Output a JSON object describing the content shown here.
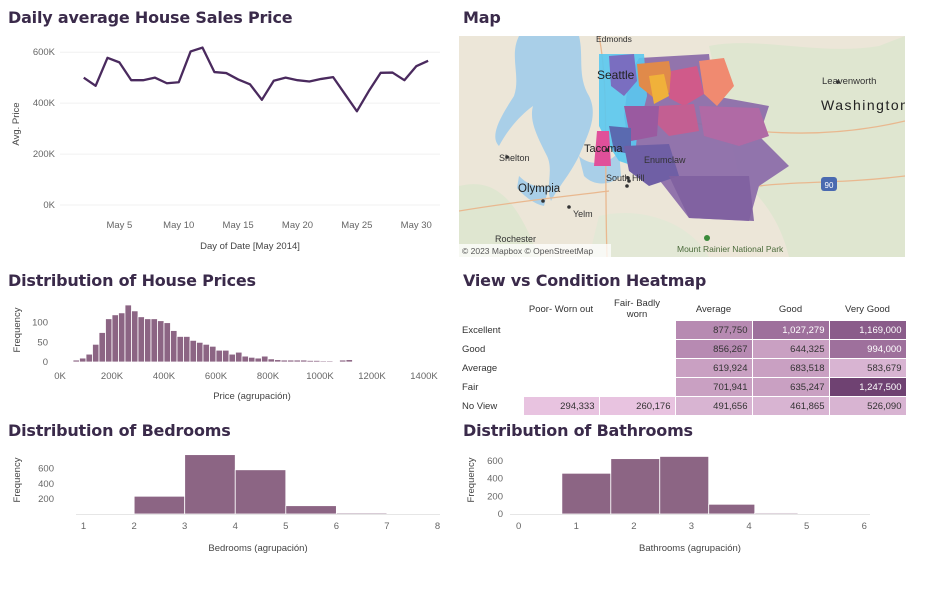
{
  "titles": {
    "daily": "Daily average House Sales Price",
    "map": "Map",
    "dist_prices": "Distribution of House Prices",
    "heatmap": "View vs Condition Heatmap",
    "bedrooms": "Distribution of Bedrooms",
    "bathrooms": "Distribution of Bathrooms"
  },
  "colors": {
    "line": "#4a2a5e",
    "bar": "#8c6584",
    "bar_edge": "#ffffff",
    "title": "#3a2a4a"
  },
  "map": {
    "labels": {
      "edmonds": "Edmonds",
      "seattle": "Seattle",
      "leavenworth": "Leavenworth",
      "washington": "Washington",
      "shelton": "Shelton",
      "tacoma": "Tacoma",
      "enumclaw": "Enumclaw",
      "olympia": "Olympia",
      "south_hill": "South Hill",
      "yelm": "Yelm",
      "rochester": "Rochester",
      "rainier": "Mount Rainier National Park",
      "i90": "90"
    },
    "attribution": "© 2023 Mapbox  © OpenStreetMap"
  },
  "heatmap": {
    "columns": [
      "Poor- Worn out",
      "Fair- Badly worn",
      "Average",
      "Good",
      "Very Good"
    ],
    "rows": [
      {
        "label": "Excellent",
        "values": [
          "",
          "",
          "877,750",
          "1,027,279",
          "1,169,000"
        ],
        "shades": [
          null,
          null,
          3,
          4,
          5
        ]
      },
      {
        "label": "Good",
        "values": [
          "",
          "",
          "856,267",
          "644,325",
          "994,000"
        ],
        "shades": [
          null,
          null,
          3,
          2,
          4
        ]
      },
      {
        "label": "Average",
        "values": [
          "",
          "",
          "619,924",
          "683,518",
          "583,679"
        ],
        "shades": [
          null,
          null,
          2,
          2,
          1
        ]
      },
      {
        "label": "Fair",
        "values": [
          "",
          "",
          "701,941",
          "635,247",
          "1,247,500"
        ],
        "shades": [
          null,
          null,
          2,
          2,
          6
        ]
      },
      {
        "label": "No View",
        "values": [
          "294,333",
          "260,176",
          "491,656",
          "461,865",
          "526,090"
        ],
        "shades": [
          0,
          0,
          1,
          1,
          1
        ]
      }
    ]
  },
  "chart_data": [
    {
      "id": "daily",
      "type": "line",
      "title": "Daily average House Sales Price",
      "xlabel": "Day of Date [May 2014]",
      "ylabel": "Avg. Price",
      "x": [
        2,
        3,
        4,
        5,
        6,
        7,
        8,
        9,
        10,
        11,
        12,
        13,
        14,
        15,
        16,
        17,
        18,
        19,
        20,
        21,
        22,
        23,
        24,
        25,
        26,
        27,
        28,
        29,
        30,
        31
      ],
      "values": [
        500000,
        468000,
        578000,
        560000,
        490000,
        490000,
        500000,
        478000,
        482000,
        603000,
        618000,
        522000,
        518000,
        493000,
        474000,
        413000,
        488000,
        500000,
        490000,
        485000,
        495000,
        502000,
        435000,
        368000,
        447000,
        519000,
        520000,
        490000,
        545000,
        566000
      ],
      "xticks": [
        5,
        10,
        15,
        20,
        25,
        30
      ],
      "xtick_labels": [
        "May 5",
        "May 10",
        "May 15",
        "May 20",
        "May 25",
        "May 30"
      ],
      "yticks": [
        0,
        200000,
        400000,
        600000
      ],
      "ytick_labels": [
        "0K",
        "200K",
        "400K",
        "600K"
      ],
      "xlim": [
        0,
        32
      ],
      "ylim": [
        0,
        640000
      ]
    },
    {
      "id": "prices",
      "type": "bar",
      "title": "Distribution of House Prices",
      "xlabel": "Price (agrupación)",
      "ylabel": "Frequency",
      "bin_width": 25000,
      "bin_start": 50000,
      "values": [
        5,
        10,
        20,
        45,
        75,
        110,
        120,
        125,
        145,
        130,
        115,
        110,
        110,
        105,
        100,
        80,
        65,
        65,
        55,
        50,
        45,
        40,
        30,
        30,
        20,
        25,
        15,
        12,
        10,
        15,
        8,
        6,
        5,
        5,
        5,
        5,
        4,
        4,
        3,
        3,
        2,
        5,
        6
      ],
      "xticks": [
        0,
        200000,
        400000,
        600000,
        800000,
        1000000,
        1200000,
        1400000
      ],
      "xtick_labels": [
        "0K",
        "200K",
        "400K",
        "600K",
        "800K",
        "1000K",
        "1200K",
        "1400K"
      ],
      "yticks": [
        0,
        50,
        100
      ],
      "ytick_labels": [
        "0",
        "50",
        "100"
      ],
      "xlim": [
        0,
        1450000
      ],
      "ylim": [
        0,
        150
      ]
    },
    {
      "id": "bedrooms",
      "type": "bar",
      "title": "Distribution of Bedrooms",
      "xlabel": "Bedrooms (agrupación)",
      "ylabel": "Frequency",
      "bins": [
        [
          1,
          2
        ],
        [
          2,
          3
        ],
        [
          3,
          4
        ],
        [
          4,
          5
        ],
        [
          5,
          6
        ],
        [
          6,
          7
        ],
        [
          7,
          8
        ]
      ],
      "values": [
        8,
        235,
        785,
        585,
        110,
        15,
        3
      ],
      "xticks": [
        1,
        2,
        3,
        4,
        5,
        6,
        7,
        8
      ],
      "xtick_labels": [
        "1",
        "2",
        "3",
        "4",
        "5",
        "6",
        "7",
        "8"
      ],
      "yticks": [
        200,
        400,
        600
      ],
      "ytick_labels": [
        "200",
        "400",
        "600"
      ],
      "xlim": [
        0.85,
        8.05
      ],
      "ylim": [
        0,
        820
      ]
    },
    {
      "id": "bathrooms",
      "type": "bar",
      "title": "Distribution of Bathrooms",
      "xlabel": "Bathrooms (agrupación)",
      "ylabel": "Frequency",
      "bins": [
        [
          0.75,
          1.6
        ],
        [
          1.6,
          2.45
        ],
        [
          2.45,
          3.3
        ],
        [
          3.3,
          4.1
        ],
        [
          4.1,
          4.85
        ]
      ],
      "values": [
        460,
        625,
        650,
        110,
        12
      ],
      "xticks": [
        0,
        1,
        2,
        3,
        4,
        5,
        6
      ],
      "xtick_labels": [
        "0",
        "1",
        "2",
        "3",
        "4",
        "5",
        "6"
      ],
      "yticks": [
        0,
        200,
        400,
        600
      ],
      "ytick_labels": [
        "0",
        "200",
        "400",
        "600"
      ],
      "xlim": [
        -0.15,
        6.1
      ],
      "ylim": [
        0,
        700
      ]
    }
  ]
}
